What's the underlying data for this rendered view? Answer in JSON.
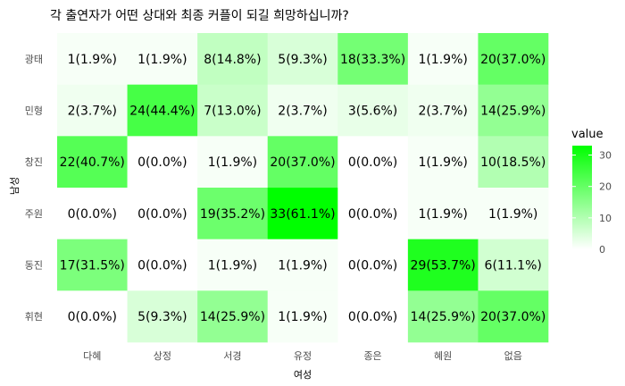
{
  "chart_data": {
    "type": "heatmap",
    "title": "각 출연자가 어떤 상대와 최종 커플이 되길 희망하십니까?",
    "xlabel": "여성",
    "ylabel": "남성",
    "x_categories": [
      "다혜",
      "상정",
      "서경",
      "유정",
      "종은",
      "혜원",
      "없음"
    ],
    "y_categories": [
      "광태",
      "민형",
      "창진",
      "주원",
      "동진",
      "휘현"
    ],
    "values": [
      [
        1,
        1,
        8,
        5,
        18,
        1,
        20
      ],
      [
        2,
        24,
        7,
        2,
        3,
        2,
        14
      ],
      [
        22,
        0,
        1,
        20,
        0,
        1,
        10
      ],
      [
        0,
        0,
        19,
        33,
        0,
        1,
        1
      ],
      [
        17,
        0,
        1,
        1,
        0,
        29,
        6
      ],
      [
        0,
        5,
        14,
        1,
        0,
        14,
        20
      ]
    ],
    "labels": [
      [
        "1(1.9%)",
        "1(1.9%)",
        "8(14.8%)",
        "5(9.3%)",
        "18(33.3%)",
        "1(1.9%)",
        "20(37.0%)"
      ],
      [
        "2(3.7%)",
        "24(44.4%)",
        "7(13.0%)",
        "2(3.7%)",
        "3(5.6%)",
        "2(3.7%)",
        "14(25.9%)"
      ],
      [
        "22(40.7%)",
        "0(0.0%)",
        "1(1.9%)",
        "20(37.0%)",
        "0(0.0%)",
        "1(1.9%)",
        "10(18.5%)"
      ],
      [
        "0(0.0%)",
        "0(0.0%)",
        "19(35.2%)",
        "33(61.1%)",
        "0(0.0%)",
        "1(1.9%)",
        "1(1.9%)"
      ],
      [
        "17(31.5%)",
        "0(0.0%)",
        "1(1.9%)",
        "1(1.9%)",
        "0(0.0%)",
        "29(53.7%)",
        "6(11.1%)"
      ],
      [
        "0(0.0%)",
        "5(9.3%)",
        "14(25.9%)",
        "1(1.9%)",
        "0(0.0%)",
        "14(25.9%)",
        "20(37.0%)"
      ]
    ],
    "value_range": [
      0,
      33
    ],
    "color_low": "#ffffff",
    "color_high": "#00ff00",
    "grid": false,
    "legend": {
      "title": "value",
      "position": "right",
      "ticks": [
        0,
        10,
        20,
        30
      ]
    }
  }
}
